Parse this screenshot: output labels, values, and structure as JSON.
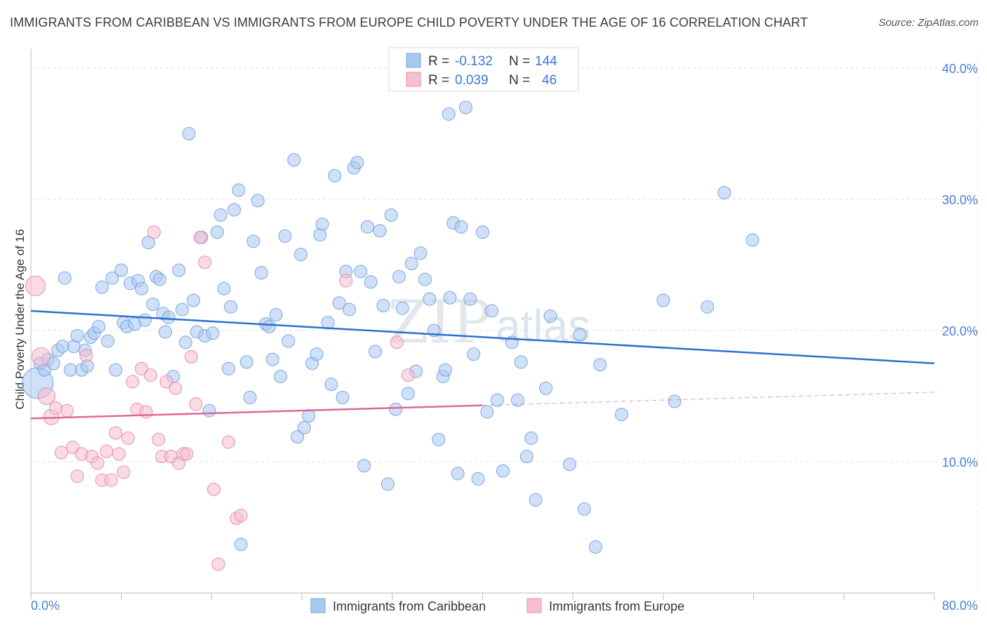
{
  "chart_data": {
    "type": "scatter",
    "title": "IMMIGRANTS FROM CARIBBEAN VS IMMIGRANTS FROM EUROPE CHILD POVERTY UNDER THE AGE OF 16 CORRELATION CHART",
    "source": "Source: ZipAtlas.com",
    "watermark": {
      "zip": "ZIP",
      "atlas": "atlas"
    },
    "xlabel": "",
    "ylabel": "Child Poverty Under the Age of 16",
    "xlim": [
      0,
      80
    ],
    "ylim": [
      0,
      40
    ],
    "y_ticks": [
      {
        "value": 10,
        "label": "10.0%"
      },
      {
        "value": 20,
        "label": "20.0%"
      },
      {
        "value": 30,
        "label": "30.0%"
      },
      {
        "value": 40,
        "label": "40.0%"
      }
    ],
    "x_tick_labels": {
      "min": "0.0%",
      "max": "80.0%"
    },
    "grid": true,
    "legend": {
      "placement": "top-center",
      "rows": [
        {
          "r_label": "R =",
          "r_value": "-0.132",
          "n_label": "N =",
          "n_value": "144"
        },
        {
          "r_label": "R =",
          "r_value": "0.039",
          "n_label": "N =",
          "n_value": "46"
        }
      ]
    },
    "series": [
      {
        "name": "Immigrants from Caribbean",
        "color": "#a9c8f0",
        "stroke": "#7aa6e0",
        "line_color": "#2c6fcf",
        "trend": {
          "x": [
            0,
            80
          ],
          "y": [
            21.5,
            17.5
          ],
          "solid_to": 80
        },
        "points": [
          [
            0.6,
            16.0
          ],
          [
            0.8,
            17.5
          ],
          [
            1.2,
            17.0
          ],
          [
            1.5,
            17.8
          ],
          [
            2.0,
            17.5
          ],
          [
            2.4,
            18.5
          ],
          [
            2.8,
            18.8
          ],
          [
            3.0,
            24.0
          ],
          [
            3.5,
            17.0
          ],
          [
            3.8,
            18.8
          ],
          [
            4.1,
            19.6
          ],
          [
            4.5,
            17.0
          ],
          [
            4.8,
            18.5
          ],
          [
            5.0,
            17.3
          ],
          [
            5.3,
            19.5
          ],
          [
            5.6,
            19.8
          ],
          [
            6.0,
            20.3
          ],
          [
            6.3,
            23.3
          ],
          [
            6.8,
            19.2
          ],
          [
            7.2,
            24.0
          ],
          [
            7.5,
            17.0
          ],
          [
            8.0,
            24.6
          ],
          [
            8.2,
            20.6
          ],
          [
            8.5,
            20.3
          ],
          [
            8.8,
            23.6
          ],
          [
            9.2,
            20.5
          ],
          [
            9.5,
            23.8
          ],
          [
            9.8,
            23.2
          ],
          [
            10.1,
            20.8
          ],
          [
            10.4,
            26.7
          ],
          [
            10.8,
            22.0
          ],
          [
            11.1,
            24.1
          ],
          [
            11.4,
            23.9
          ],
          [
            11.7,
            21.3
          ],
          [
            11.9,
            19.9
          ],
          [
            12.2,
            21.0
          ],
          [
            12.6,
            16.5
          ],
          [
            13.1,
            24.6
          ],
          [
            13.4,
            21.6
          ],
          [
            13.7,
            19.1
          ],
          [
            14.0,
            35.0
          ],
          [
            14.4,
            22.3
          ],
          [
            14.7,
            19.9
          ],
          [
            15.1,
            27.1
          ],
          [
            15.4,
            19.6
          ],
          [
            15.8,
            13.9
          ],
          [
            16.1,
            19.8
          ],
          [
            16.5,
            27.5
          ],
          [
            16.8,
            28.8
          ],
          [
            17.1,
            23.2
          ],
          [
            17.5,
            17.1
          ],
          [
            17.7,
            21.8
          ],
          [
            18.0,
            29.2
          ],
          [
            18.4,
            30.7
          ],
          [
            18.6,
            3.7
          ],
          [
            19.1,
            17.6
          ],
          [
            19.4,
            14.9
          ],
          [
            19.7,
            26.8
          ],
          [
            20.1,
            29.9
          ],
          [
            20.4,
            24.4
          ],
          [
            20.8,
            20.5
          ],
          [
            21.1,
            20.3
          ],
          [
            21.4,
            17.8
          ],
          [
            21.7,
            21.2
          ],
          [
            22.1,
            16.5
          ],
          [
            22.5,
            27.2
          ],
          [
            22.8,
            19.2
          ],
          [
            23.3,
            33.0
          ],
          [
            23.6,
            11.9
          ],
          [
            23.9,
            25.8
          ],
          [
            24.2,
            12.6
          ],
          [
            24.6,
            13.5
          ],
          [
            24.9,
            17.5
          ],
          [
            25.3,
            18.2
          ],
          [
            25.6,
            27.3
          ],
          [
            25.8,
            28.1
          ],
          [
            26.3,
            20.6
          ],
          [
            26.6,
            15.9
          ],
          [
            26.9,
            31.8
          ],
          [
            27.3,
            22.1
          ],
          [
            27.6,
            14.9
          ],
          [
            27.9,
            24.5
          ],
          [
            28.2,
            21.6
          ],
          [
            28.6,
            32.4
          ],
          [
            28.9,
            32.8
          ],
          [
            29.2,
            24.5
          ],
          [
            29.5,
            9.7
          ],
          [
            29.8,
            27.9
          ],
          [
            30.1,
            23.7
          ],
          [
            30.5,
            18.4
          ],
          [
            30.9,
            27.6
          ],
          [
            31.2,
            21.9
          ],
          [
            31.6,
            8.3
          ],
          [
            31.9,
            28.8
          ],
          [
            32.3,
            14.0
          ],
          [
            32.6,
            24.1
          ],
          [
            32.9,
            21.7
          ],
          [
            33.4,
            15.2
          ],
          [
            33.7,
            25.1
          ],
          [
            34.1,
            16.9
          ],
          [
            34.5,
            25.9
          ],
          [
            34.9,
            23.9
          ],
          [
            35.3,
            22.4
          ],
          [
            35.7,
            20.0
          ],
          [
            36.1,
            11.7
          ],
          [
            36.5,
            16.5
          ],
          [
            36.7,
            17.0
          ],
          [
            37.1,
            22.5
          ],
          [
            37.4,
            28.2
          ],
          [
            37.8,
            9.1
          ],
          [
            38.1,
            27.9
          ],
          [
            38.5,
            37.0
          ],
          [
            38.9,
            22.4
          ],
          [
            39.2,
            18.2
          ],
          [
            39.6,
            8.7
          ],
          [
            40.0,
            27.5
          ],
          [
            40.4,
            13.8
          ],
          [
            40.8,
            21.5
          ],
          [
            41.3,
            14.7
          ],
          [
            41.8,
            9.3
          ],
          [
            42.6,
            19.1
          ],
          [
            43.1,
            14.7
          ],
          [
            43.4,
            17.6
          ],
          [
            43.9,
            10.4
          ],
          [
            44.3,
            11.8
          ],
          [
            44.7,
            7.1
          ],
          [
            45.6,
            15.6
          ],
          [
            46.0,
            21.1
          ],
          [
            47.7,
            9.8
          ],
          [
            48.6,
            19.7
          ],
          [
            49.0,
            6.4
          ],
          [
            50.0,
            3.5
          ],
          [
            50.4,
            17.4
          ],
          [
            52.3,
            13.6
          ],
          [
            56.0,
            22.3
          ],
          [
            59.9,
            21.8
          ],
          [
            61.4,
            30.5
          ],
          [
            63.9,
            26.9
          ],
          [
            57.0,
            14.6
          ],
          [
            37.0,
            36.5
          ]
        ]
      },
      {
        "name": "Immigrants from Europe",
        "color": "#f6bed0",
        "stroke": "#e58fae",
        "line_color": "#e0679a",
        "trend": {
          "x": [
            0,
            80
          ],
          "y": [
            13.3,
            15.3
          ],
          "solid_to": 40
        },
        "points": [
          [
            0.4,
            23.4
          ],
          [
            0.9,
            18.0
          ],
          [
            1.4,
            15.0
          ],
          [
            1.8,
            13.4
          ],
          [
            2.2,
            14.1
          ],
          [
            2.7,
            10.7
          ],
          [
            3.2,
            13.9
          ],
          [
            3.7,
            11.1
          ],
          [
            4.1,
            8.9
          ],
          [
            4.5,
            10.6
          ],
          [
            4.9,
            18.1
          ],
          [
            5.4,
            10.4
          ],
          [
            5.9,
            9.9
          ],
          [
            6.3,
            8.6
          ],
          [
            6.7,
            10.8
          ],
          [
            7.1,
            8.6
          ],
          [
            7.5,
            12.2
          ],
          [
            7.8,
            10.6
          ],
          [
            8.2,
            9.2
          ],
          [
            8.6,
            11.8
          ],
          [
            9.0,
            16.1
          ],
          [
            9.4,
            14.0
          ],
          [
            9.8,
            17.1
          ],
          [
            10.2,
            13.8
          ],
          [
            10.6,
            16.6
          ],
          [
            10.9,
            27.5
          ],
          [
            11.3,
            11.7
          ],
          [
            11.6,
            10.4
          ],
          [
            12.0,
            16.1
          ],
          [
            12.4,
            10.4
          ],
          [
            12.8,
            15.6
          ],
          [
            13.1,
            9.9
          ],
          [
            13.5,
            10.6
          ],
          [
            13.8,
            10.6
          ],
          [
            14.2,
            18.0
          ],
          [
            14.6,
            14.4
          ],
          [
            15.0,
            27.1
          ],
          [
            15.4,
            25.2
          ],
          [
            16.2,
            7.9
          ],
          [
            16.6,
            2.2
          ],
          [
            17.5,
            11.5
          ],
          [
            18.2,
            5.7
          ],
          [
            18.6,
            5.9
          ],
          [
            27.9,
            23.8
          ],
          [
            32.4,
            19.1
          ],
          [
            33.4,
            16.6
          ]
        ]
      }
    ]
  },
  "bottom_legend": {
    "caribbean_label": "Immigrants from Caribbean",
    "europe_label": "Immigrants from Europe"
  }
}
